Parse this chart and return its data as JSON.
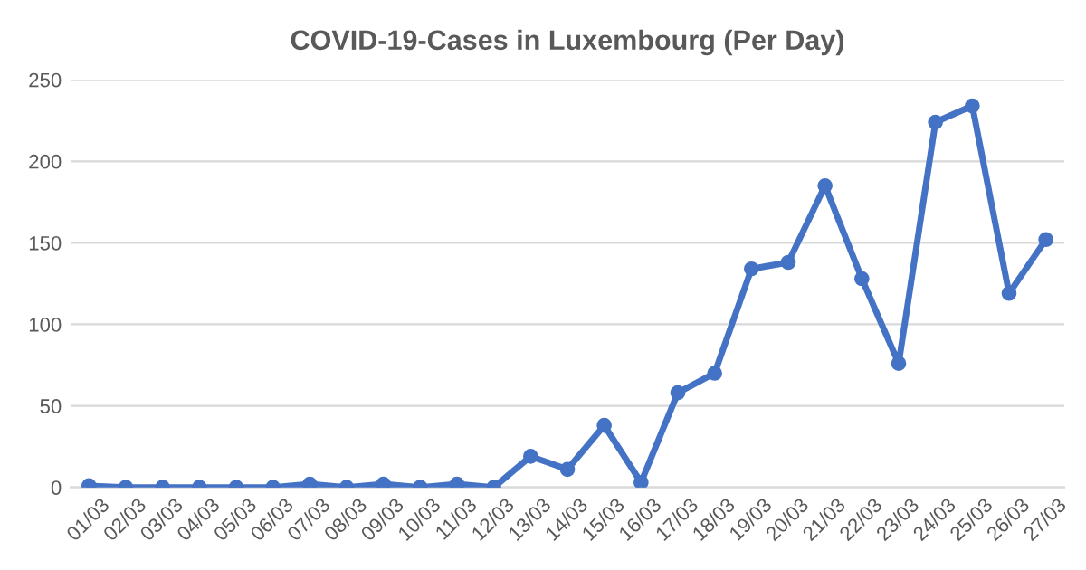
{
  "chart_data": {
    "type": "line",
    "title": "COVID-19-Cases in Luxembourg (Per Day)",
    "categories": [
      "01/03",
      "02/03",
      "03/03",
      "04/03",
      "05/03",
      "06/03",
      "07/03",
      "08/03",
      "09/03",
      "10/03",
      "11/03",
      "12/03",
      "13/03",
      "14/03",
      "15/03",
      "16/03",
      "17/03",
      "18/03",
      "19/03",
      "20/03",
      "21/03",
      "22/03",
      "23/03",
      "24/03",
      "25/03",
      "26/03",
      "27/03"
    ],
    "series": [
      {
        "color": "#4472c4",
        "values": [
          1,
          0,
          0,
          0,
          0,
          0,
          2,
          0,
          2,
          0,
          2,
          0,
          19,
          11,
          38,
          3,
          58,
          70,
          134,
          138,
          185,
          128,
          76,
          224,
          234,
          119,
          152
        ]
      }
    ],
    "ylim": [
      0,
      250
    ],
    "yticks": [
      0,
      50,
      100,
      150,
      200,
      250
    ],
    "grid": "y",
    "marker": "circle",
    "line_style": "solid"
  }
}
